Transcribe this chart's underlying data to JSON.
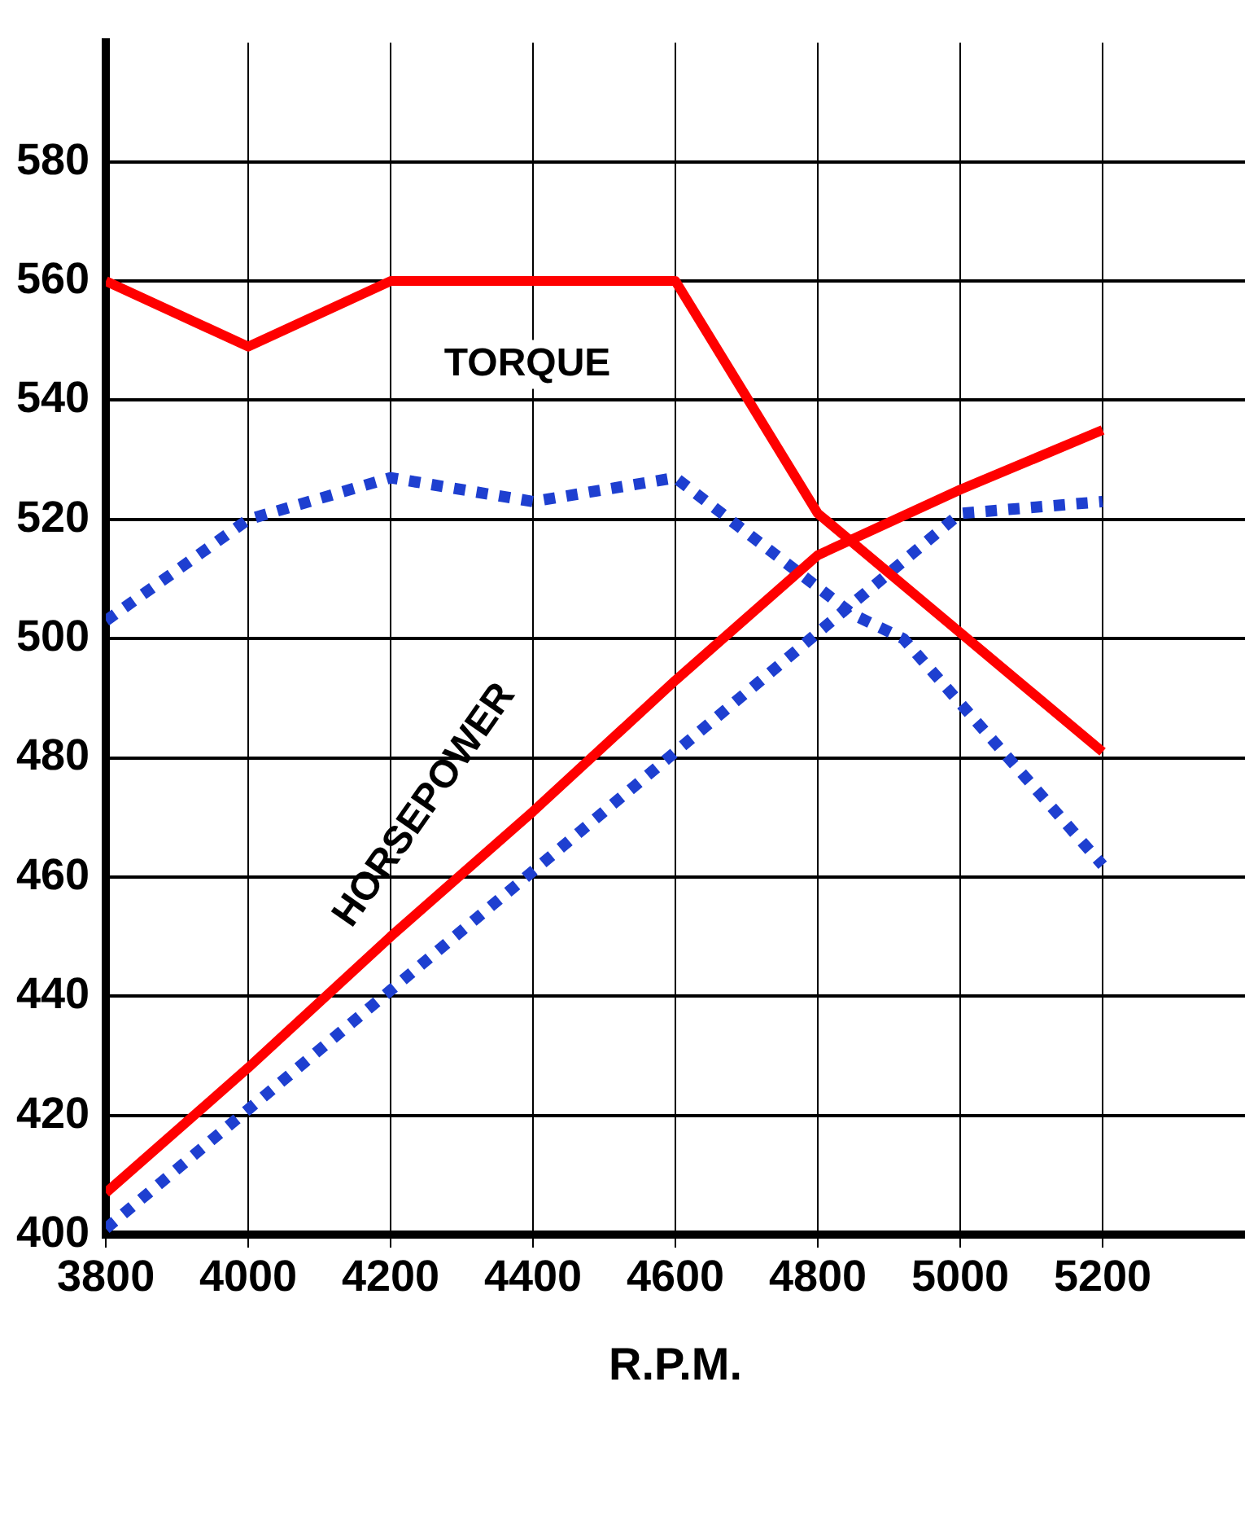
{
  "chart_data": {
    "type": "line",
    "xlabel": "R.P.M.",
    "xlim": [
      3800,
      5400
    ],
    "xticks": [
      3800,
      4000,
      4200,
      4400,
      4600,
      4800,
      5000,
      5200
    ],
    "ylim": [
      400,
      600
    ],
    "yticks": [
      400,
      420,
      440,
      460,
      480,
      500,
      520,
      540,
      560,
      580
    ],
    "grid": true,
    "marker": "none",
    "annotations": [
      "TORQUE",
      "HORSEPOWER"
    ],
    "series": [
      {
        "color": "#ff0000",
        "line_style": "solid",
        "x": [
          3800,
          4000,
          4200,
          4400,
          4600,
          4800,
          5200
        ],
        "values": [
          560,
          549,
          560,
          560,
          560,
          521,
          481
        ]
      },
      {
        "color": "#ff0000",
        "line_style": "solid",
        "x": [
          3800,
          4000,
          4200,
          4400,
          4600,
          4800,
          5000,
          5200
        ],
        "values": [
          407,
          428,
          450,
          471,
          493,
          514,
          525,
          535
        ]
      },
      {
        "color": "#1e3fd0",
        "line_style": "dotted",
        "x": [
          3800,
          4000,
          4200,
          4400,
          4600,
          4850,
          4920,
          5200
        ],
        "values": [
          503,
          520,
          527,
          523,
          527,
          504,
          500,
          462
        ]
      },
      {
        "color": "#1e3fd0",
        "line_style": "dotted",
        "x": [
          3800,
          4000,
          4200,
          4400,
          4600,
          4800,
          5000,
          5200
        ],
        "values": [
          401,
          421,
          441,
          461,
          481,
          501,
          521,
          523
        ]
      }
    ]
  }
}
